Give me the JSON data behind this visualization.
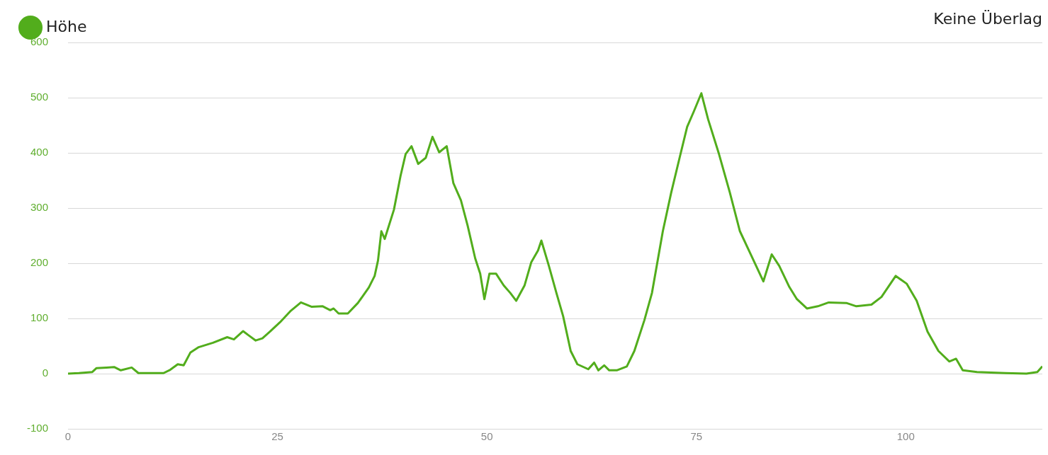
{
  "chart_data": {
    "type": "line",
    "annotations": [
      "Keine Überlag"
    ],
    "x": [
      0,
      1.3,
      2.9,
      3.4,
      4.6,
      5.5,
      6.3,
      7.6,
      8.4,
      11.4,
      12.2,
      13.1,
      13.8,
      14.6,
      15.6,
      17.3,
      19,
      19.8,
      20.9,
      21.5,
      22.4,
      23.2,
      24.1,
      25.3,
      26.6,
      27.8,
      29.1,
      30.4,
      31.3,
      31.7,
      32.3,
      33.4,
      34.6,
      35.9,
      36.6,
      37,
      37.4,
      37.8,
      38.9,
      39.7,
      40.3,
      41,
      41.8,
      42.7,
      43.5,
      44.3,
      45.2,
      46,
      46.9,
      47.7,
      48.6,
      49.2,
      49.7,
      50.3,
      51.1,
      52,
      52.8,
      53.5,
      54.5,
      55.3,
      56.1,
      56.5,
      57.4,
      58.3,
      59.1,
      60,
      60.8,
      62.1,
      62.8,
      63.3,
      64,
      64.6,
      65.5,
      66.7,
      67.6,
      68.8,
      69.7,
      71,
      72,
      73,
      73.9,
      74.7,
      75.6,
      76.4,
      77.7,
      79,
      80.2,
      81.5,
      83,
      84,
      84.9,
      86.1,
      87,
      88.2,
      89.5,
      90.8,
      92.9,
      94.1,
      95.9,
      97.1,
      98.8,
      100.1,
      101.3,
      102.6,
      103.9,
      105.2,
      106,
      106.8,
      108.5,
      111.9,
      114.4,
      115.7,
      116.3
    ],
    "series": [
      {
        "name": "Höhe",
        "color": "#52ad1c",
        "values": [
          0,
          1,
          3,
          10,
          11,
          12,
          6,
          11,
          1,
          1,
          7,
          17,
          15,
          38,
          48,
          56,
          66,
          62,
          77,
          70,
          60,
          64,
          76,
          93,
          114,
          129,
          121,
          122,
          115,
          118,
          109,
          109,
          128,
          156,
          177,
          205,
          258,
          244,
          297,
          359,
          398,
          412,
          380,
          391,
          429,
          401,
          412,
          345,
          314,
          268,
          209,
          181,
          135,
          181,
          181,
          160,
          146,
          132,
          160,
          202,
          223,
          241,
          195,
          146,
          104,
          41,
          17,
          8,
          20,
          6,
          15,
          6,
          6,
          13,
          41,
          97,
          146,
          258,
          328,
          391,
          447,
          475,
          508,
          461,
          398,
          328,
          258,
          216,
          167,
          216,
          195,
          157,
          135,
          118,
          122,
          129,
          128,
          122,
          125,
          139,
          177,
          163,
          132,
          76,
          41,
          22,
          27,
          6,
          3,
          1,
          0,
          3,
          13
        ]
      }
    ],
    "xlim": [
      0,
      116.3
    ],
    "ylim": [
      -100,
      600
    ],
    "xticks": [
      0,
      25,
      50,
      75,
      100
    ],
    "yticks": [
      -100,
      0,
      100,
      200,
      300,
      400,
      500,
      600
    ],
    "grid": "y",
    "legend": "top left",
    "marker": "none",
    "line_style": "solid"
  }
}
